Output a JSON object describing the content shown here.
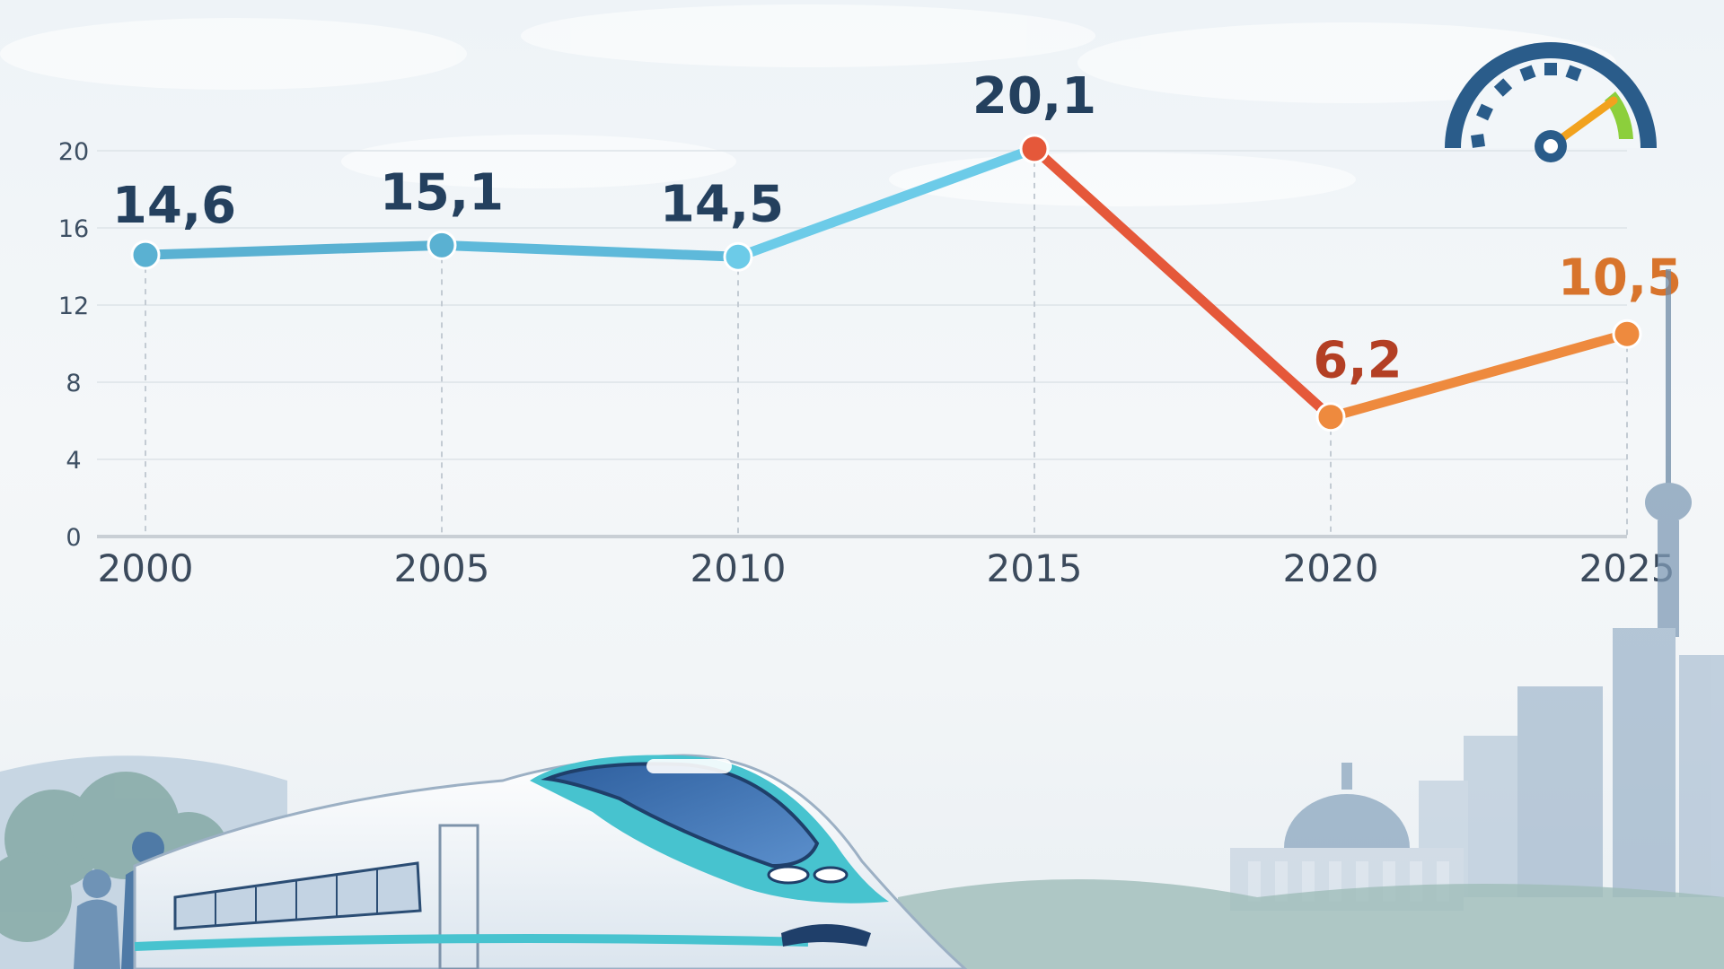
{
  "chart_data": {
    "type": "line",
    "title": "",
    "xlabel": "",
    "ylabel": "",
    "x": [
      "2000",
      "2005",
      "2010",
      "2015",
      "2020",
      "2025"
    ],
    "y_ticks": [
      "0",
      "4",
      "8",
      "12",
      "16",
      "20"
    ],
    "ylim": [
      0,
      20
    ],
    "grid": true,
    "legend": "none",
    "series": [
      {
        "values": [
          14.6,
          15.1,
          14.5,
          20.1,
          6.2,
          10.5
        ],
        "labels": [
          "14,6",
          "15,1",
          "14,5",
          "20,1",
          "6,2",
          "10,5"
        ],
        "point_colors": [
          "#5ab1d2",
          "#5ab1d2",
          "#6ccbe8",
          "#e5583a",
          "#ee8a3e",
          "#ee8a3e"
        ],
        "label_colors": [
          "#24405e",
          "#24405e",
          "#24405e",
          "#24405e",
          "#b33f24",
          "#d8742c"
        ],
        "segment_colors": [
          "#5ab1d2",
          "#5eb9da",
          "#6ccbe8",
          "#e5583a",
          "#ee8a3e"
        ]
      }
    ]
  },
  "decor": {
    "gauge_icon": "speedometer-icon",
    "train_icon": "high-speed-train-icon",
    "skyline_icon": "city-skyline-icon"
  }
}
